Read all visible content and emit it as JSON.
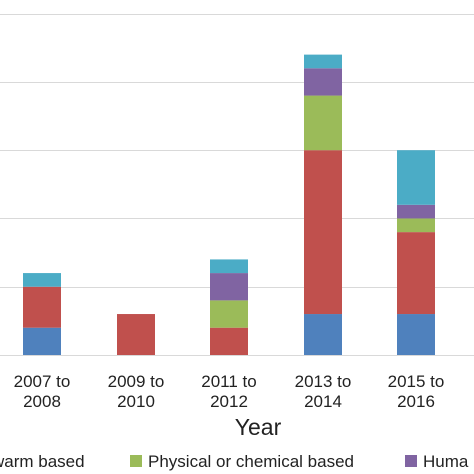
{
  "chart_data": {
    "type": "bar",
    "stacked": true,
    "categories": [
      "2007 to\n2008",
      "2009 to\n2010",
      "2011 to\n2012",
      "2013 to\n2014",
      "2015 to\n2016"
    ],
    "xlabel": "Year",
    "ylabel": "",
    "title": "",
    "ylim": [
      0,
      26
    ],
    "yticks": [
      0,
      5,
      10,
      15,
      20,
      25
    ],
    "grid": true,
    "legend_position": "bottom",
    "series": [
      {
        "legend_text": "",
        "color": "#4f81bd",
        "values": [
          2,
          0,
          0,
          3,
          3
        ]
      },
      {
        "legend_text": "",
        "color": "#c0504d",
        "values": [
          3,
          3,
          2,
          12,
          6
        ]
      },
      {
        "legend_text": "Physical or chemical based",
        "color": "#9bbb59",
        "values": [
          0,
          0,
          2,
          4,
          1
        ]
      },
      {
        "legend_text": "",
        "color": "#8064a2",
        "values": [
          0,
          0,
          2,
          2,
          1
        ]
      },
      {
        "legend_text": "",
        "color": "#4bacc6",
        "values": [
          1,
          0,
          1,
          1,
          4
        ]
      }
    ],
    "legend_visible_text": [
      "warm based",
      "Physical or chemical based",
      "Huma"
    ]
  }
}
